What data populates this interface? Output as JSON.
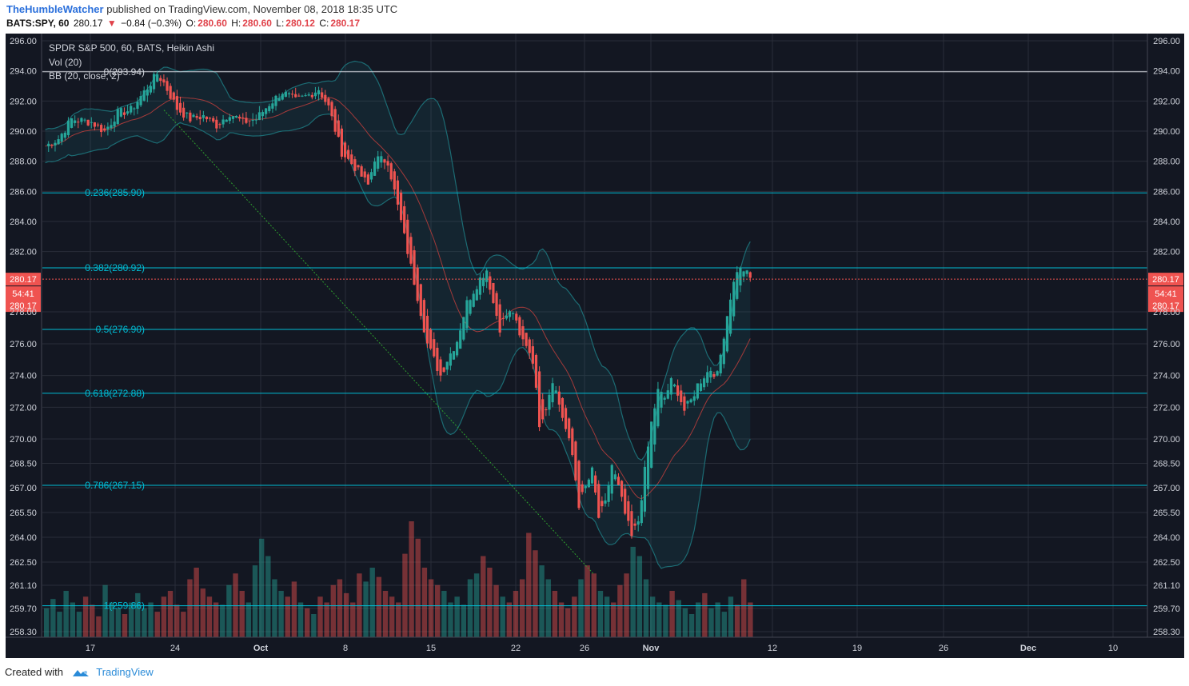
{
  "header": {
    "author": "TheHumbleWatcher",
    "published": "published on TradingView.com, November 08, 2018 18:35 UTC",
    "symbol": "BATS:SPY, 60",
    "last": "280.17",
    "change": "−0.84 (−0.3%)",
    "o_label": "O:",
    "o": "280.60",
    "h_label": "H:",
    "h": "280.60",
    "l_label": "L:",
    "l": "280.12",
    "c_label": "C:",
    "c": "280.17"
  },
  "legend": {
    "title": "SPDR S&P 500, 60, BATS, Heikin Ashi",
    "vol": "Vol (20)",
    "bb": "BB (20, close, 2)"
  },
  "footer": {
    "created": "Created with",
    "brand": "TradingView"
  },
  "colors": {
    "background": "#131722",
    "up": "#26a69a",
    "down": "#ef5350",
    "fib_line": "#00bcd4",
    "fib_top_line": "#d1d4dc",
    "price_line": "#ef5350",
    "bb_band": "#1c6b73",
    "bb_basis": "#a33a3a",
    "trend": "#2e9e2e"
  },
  "chart_data": {
    "type": "candlestick",
    "style": "Heikin Ashi",
    "y_ticks": [
      "296.00",
      "294.00",
      "292.00",
      "290.00",
      "288.00",
      "286.00",
      "284.00",
      "282.00",
      "278.00",
      "276.00",
      "274.00",
      "272.00",
      "270.00",
      "268.50",
      "267.00",
      "265.50",
      "264.00",
      "262.50",
      "261.10",
      "259.70",
      "258.30"
    ],
    "x_ticks": [
      "17",
      "24",
      "Oct",
      "8",
      "15",
      "22",
      "26",
      "Nov",
      "12",
      "19",
      "26",
      "Dec",
      "10"
    ],
    "x_tick_bold": [
      "Oct",
      "Nov",
      "Dec"
    ],
    "fib_levels": [
      {
        "label": "0(293.94)",
        "price": 293.94
      },
      {
        "label": "0.236(285.90)",
        "price": 285.9
      },
      {
        "label": "0.382(280.92)",
        "price": 280.92
      },
      {
        "label": "0.5(276.90)",
        "price": 276.9
      },
      {
        "label": "0.618(272.88)",
        "price": 272.88
      },
      {
        "label": "0.786(267.15)",
        "price": 267.15
      },
      {
        "label": "1(259.86)",
        "price": 259.86
      }
    ],
    "last_price": "280.17",
    "countdown": "54:41",
    "price_path": [
      [
        0,
        289.0
      ],
      [
        4,
        289.5
      ],
      [
        8,
        290.8
      ],
      [
        14,
        290.6
      ],
      [
        18,
        290.0
      ],
      [
        22,
        291.2
      ],
      [
        26,
        291.4
      ],
      [
        30,
        292.6
      ],
      [
        34,
        293.8
      ],
      [
        36,
        293.2
      ],
      [
        40,
        291.5
      ],
      [
        44,
        290.8
      ],
      [
        48,
        291.0
      ],
      [
        52,
        290.4
      ],
      [
        56,
        291.2
      ],
      [
        60,
        290.6
      ],
      [
        64,
        290.8
      ],
      [
        68,
        291.8
      ],
      [
        72,
        292.6
      ],
      [
        76,
        292.0
      ],
      [
        80,
        292.4
      ],
      [
        83,
        292.8
      ],
      [
        86,
        291.6
      ],
      [
        90,
        288.6
      ],
      [
        94,
        287.6
      ],
      [
        98,
        286.4
      ],
      [
        100,
        288.2
      ],
      [
        104,
        288.0
      ],
      [
        108,
        284.0
      ],
      [
        112,
        280.0
      ],
      [
        116,
        276.0
      ],
      [
        120,
        274.0
      ],
      [
        122,
        275.0
      ],
      [
        125,
        276.2
      ],
      [
        128,
        278.6
      ],
      [
        132,
        280.2
      ],
      [
        134,
        280.8
      ],
      [
        136,
        278.6
      ],
      [
        138,
        277.0
      ],
      [
        140,
        277.8
      ],
      [
        142,
        278.0
      ],
      [
        144,
        276.4
      ],
      [
        146,
        276.0
      ],
      [
        148,
        275.0
      ],
      [
        150,
        271.0
      ],
      [
        152,
        272.0
      ],
      [
        154,
        273.8
      ],
      [
        156,
        272.2
      ],
      [
        158,
        270.6
      ],
      [
        160,
        269.0
      ],
      [
        162,
        266.0
      ],
      [
        164,
        267.0
      ],
      [
        166,
        268.0
      ],
      [
        168,
        265.2
      ],
      [
        170,
        266.0
      ],
      [
        172,
        268.4
      ],
      [
        174,
        267.0
      ],
      [
        176,
        265.4
      ],
      [
        178,
        264.0
      ],
      [
        180,
        265.0
      ],
      [
        182,
        268.0
      ],
      [
        184,
        271.0
      ],
      [
        186,
        273.0
      ],
      [
        188,
        272.6
      ],
      [
        190,
        273.6
      ],
      [
        192,
        273.0
      ],
      [
        194,
        271.8
      ],
      [
        196,
        272.4
      ],
      [
        198,
        273.4
      ],
      [
        200,
        274.0
      ],
      [
        202,
        274.4
      ],
      [
        204,
        274.0
      ],
      [
        206,
        276.6
      ],
      [
        208,
        279.0
      ],
      [
        210,
        280.8
      ],
      [
        212,
        280.8
      ],
      [
        214,
        280.2
      ]
    ],
    "volume": [
      0.25,
      0.33,
      0.22,
      0.4,
      0.3,
      0.22,
      0.35,
      0.28,
      0.18,
      0.45,
      0.3,
      0.25,
      0.2,
      0.3,
      0.38,
      0.25,
      0.3,
      0.22,
      0.35,
      0.4,
      0.28,
      0.22,
      0.5,
      0.6,
      0.42,
      0.35,
      0.3,
      0.28,
      0.45,
      0.55,
      0.4,
      0.3,
      0.62,
      0.85,
      0.7,
      0.5,
      0.4,
      0.35,
      0.48,
      0.3,
      0.25,
      0.2,
      0.35,
      0.3,
      0.45,
      0.5,
      0.38,
      0.3,
      0.55,
      0.48,
      0.6,
      0.52,
      0.4,
      0.35,
      0.3,
      0.72,
      1.0,
      0.85,
      0.6,
      0.5,
      0.45,
      0.4,
      0.3,
      0.35,
      0.28,
      0.5,
      0.55,
      0.7,
      0.6,
      0.45,
      0.35,
      0.3,
      0.4,
      0.5,
      0.9,
      0.75,
      0.62,
      0.5,
      0.4,
      0.3,
      0.25,
      0.35,
      0.5,
      0.62,
      0.55,
      0.4,
      0.35,
      0.3,
      0.45,
      0.55,
      0.78,
      0.7,
      0.5,
      0.35,
      0.3,
      0.28,
      0.4,
      0.32,
      0.25,
      0.2,
      0.3,
      0.38,
      0.25,
      0.3,
      0.22,
      0.35,
      0.28,
      0.5,
      0.3
    ]
  }
}
